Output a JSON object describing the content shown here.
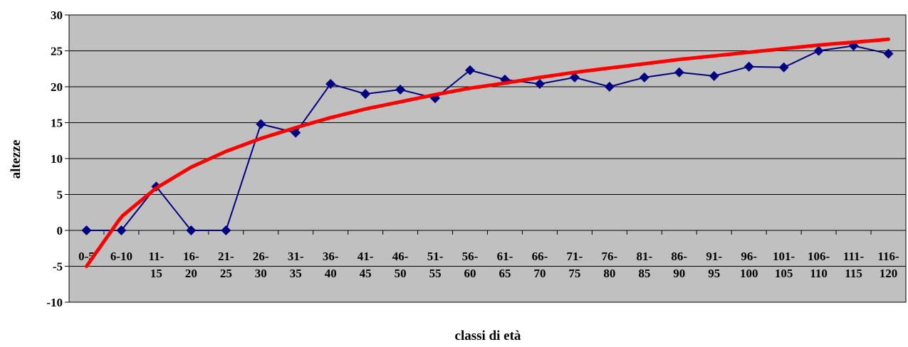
{
  "chart_data": {
    "type": "line",
    "xlabel": "classi di età",
    "ylabel": "altezze",
    "ylim": [
      -10,
      30
    ],
    "yticks": [
      -10,
      -5,
      0,
      5,
      10,
      15,
      20,
      25,
      30
    ],
    "grid": true,
    "categories": [
      [
        "0-5"
      ],
      [
        "6-10"
      ],
      [
        "11-",
        "15"
      ],
      [
        "16-",
        "20"
      ],
      [
        "21-",
        "25"
      ],
      [
        "26-",
        "30"
      ],
      [
        "31-",
        "35"
      ],
      [
        "36-",
        "40"
      ],
      [
        "41-",
        "45"
      ],
      [
        "46-",
        "50"
      ],
      [
        "51-",
        "55"
      ],
      [
        "56-",
        "60"
      ],
      [
        "61-",
        "65"
      ],
      [
        "66-",
        "70"
      ],
      [
        "71-",
        "75"
      ],
      [
        "76-",
        "80"
      ],
      [
        "81-",
        "85"
      ],
      [
        "86-",
        "90"
      ],
      [
        "91-",
        "95"
      ],
      [
        "96-",
        "100"
      ],
      [
        "101-",
        "105"
      ],
      [
        "106-",
        "110"
      ],
      [
        "111-",
        "115"
      ],
      [
        "116-",
        "120"
      ]
    ],
    "series": [
      {
        "values": [
          0,
          0,
          6.1,
          0,
          0,
          14.8,
          13.6,
          20.4,
          19.0,
          19.6,
          18.4,
          22.3,
          21.0,
          20.4,
          21.3,
          20.0,
          21.3,
          22.0,
          21.5,
          22.8,
          22.7,
          25.0,
          25.7,
          24.6
        ],
        "color": "#000080",
        "marker": "diamond"
      }
    ],
    "trendline": {
      "type": "logarithmic",
      "color": "#ff0000",
      "values": [
        -5.0,
        1.9,
        5.9,
        8.8,
        11.0,
        12.8,
        14.3,
        15.7,
        16.9,
        17.9,
        18.9,
        19.8,
        20.5,
        21.3,
        22.0,
        22.6,
        23.2,
        23.8,
        24.3,
        24.8,
        25.3,
        25.8,
        26.2,
        26.6
      ]
    },
    "plot_background": "#c0c0c0"
  }
}
